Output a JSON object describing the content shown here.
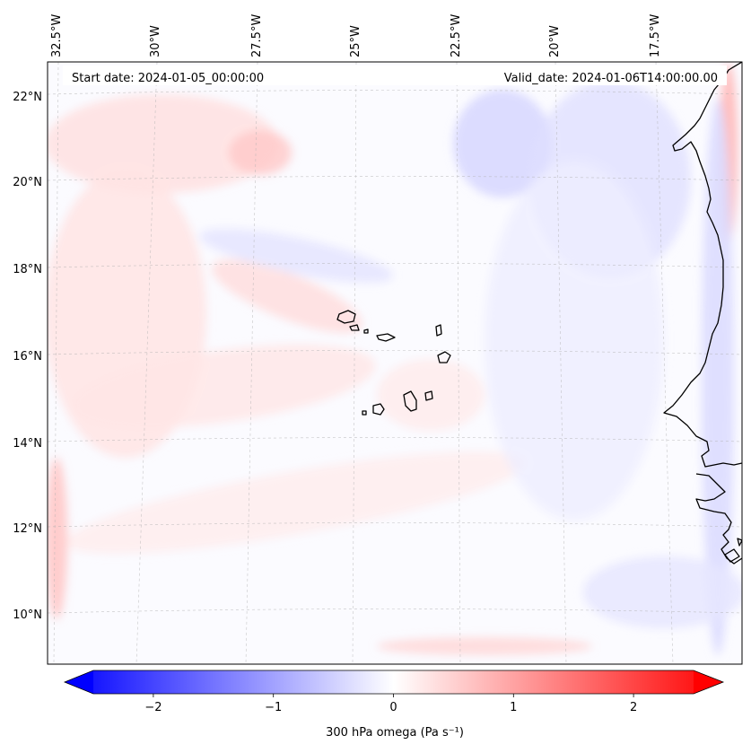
{
  "map": {
    "start_label": "Start date: 2024-01-05_00:00:00",
    "valid_label": "Valid_date: 2024-01-06T14:00:00.00",
    "lon_labels": [
      "32.5°W",
      "30°W",
      "27.5°W",
      "25°W",
      "22.5°W",
      "20°W",
      "17.5°W"
    ],
    "lat_labels": [
      "22°N",
      "20°N",
      "18°N",
      "16°N",
      "14°N",
      "12°N",
      "10°N"
    ]
  },
  "colorbar": {
    "label": "300 hPa omega (Pa s⁻¹)",
    "tick_labels": [
      "−2",
      "−1",
      "0",
      "1",
      "2"
    ],
    "tick_values": [
      -2,
      -1,
      0,
      1,
      2
    ],
    "range": [
      -2.5,
      2.5
    ],
    "colormap": "bwr",
    "low_color": "#0000ff",
    "mid_color": "#ffffff",
    "high_color": "#ff0000",
    "extend": "both"
  },
  "colors": {
    "coastline": "#000000",
    "gridline": "#b0b0b0"
  }
}
